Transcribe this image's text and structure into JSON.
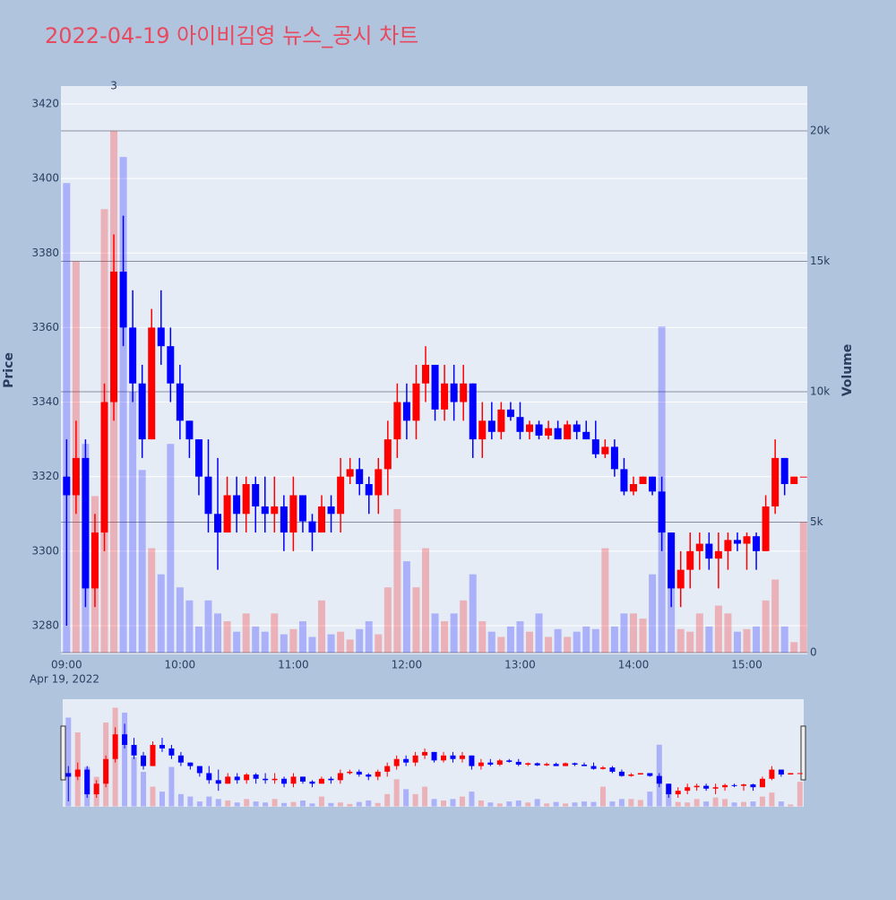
{
  "chart_data": {
    "type": "candlestick",
    "title": "2022-04-19 아이비김영 뉴스_공시 차트",
    "y_label": "Price",
    "y2_label": "Volume",
    "x_date_label": "Apr 19, 2022",
    "increasing_color": "red",
    "decreasing_color": "blue",
    "x": [
      "09:00",
      "09:05",
      "09:10",
      "09:15",
      "09:20",
      "09:25",
      "09:30",
      "09:35",
      "09:40",
      "09:45",
      "09:50",
      "09:55",
      "10:00",
      "10:05",
      "10:10",
      "10:15",
      "10:20",
      "10:25",
      "10:30",
      "10:35",
      "10:40",
      "10:45",
      "10:50",
      "10:55",
      "11:00",
      "11:05",
      "11:10",
      "11:15",
      "11:20",
      "11:25",
      "11:30",
      "11:35",
      "11:40",
      "11:45",
      "11:50",
      "11:55",
      "12:00",
      "12:05",
      "12:10",
      "12:15",
      "12:20",
      "12:25",
      "12:30",
      "12:35",
      "12:40",
      "12:45",
      "12:50",
      "12:55",
      "13:00",
      "13:05",
      "13:10",
      "13:15",
      "13:20",
      "13:25",
      "13:30",
      "13:35",
      "13:40",
      "13:45",
      "13:50",
      "13:55",
      "14:00",
      "14:05",
      "14:10",
      "14:15",
      "14:20",
      "14:25",
      "14:30",
      "14:35",
      "14:40",
      "14:45",
      "14:50",
      "14:55",
      "15:00",
      "15:05",
      "15:10",
      "15:15",
      "15:20",
      "15:25",
      "15:30"
    ],
    "open": [
      3320,
      3315,
      3325,
      3290,
      3305,
      3340,
      3375,
      3360,
      3345,
      3330,
      3360,
      3355,
      3345,
      3335,
      3330,
      3320,
      3310,
      3305,
      3315,
      3310,
      3318,
      3312,
      3310,
      3312,
      3305,
      3315,
      3308,
      3305,
      3312,
      3310,
      3320,
      3322,
      3318,
      3315,
      3322,
      3330,
      3340,
      3335,
      3345,
      3350,
      3338,
      3345,
      3340,
      3345,
      3330,
      3335,
      3332,
      3338,
      3336,
      3332,
      3334,
      3331,
      3333,
      3330,
      3334,
      3332,
      3330,
      3326,
      3328,
      3322,
      3316,
      3318,
      3320,
      3316,
      3305,
      3290,
      3295,
      3300,
      3302,
      3298,
      3300,
      3303,
      3302,
      3304,
      3300,
      3312,
      3325,
      3318,
      3320
    ],
    "high": [
      3330,
      3335,
      3330,
      3310,
      3345,
      3385,
      3390,
      3370,
      3350,
      3365,
      3370,
      3360,
      3350,
      3335,
      3330,
      3330,
      3325,
      3320,
      3320,
      3320,
      3320,
      3320,
      3320,
      3315,
      3320,
      3315,
      3310,
      3315,
      3315,
      3325,
      3325,
      3325,
      3320,
      3325,
      3335,
      3345,
      3345,
      3350,
      3355,
      3350,
      3350,
      3350,
      3350,
      3345,
      3340,
      3340,
      3340,
      3340,
      3340,
      3335,
      3335,
      3335,
      3335,
      3335,
      3335,
      3335,
      3335,
      3330,
      3330,
      3325,
      3320,
      3320,
      3320,
      3320,
      3305,
      3300,
      3305,
      3305,
      3305,
      3305,
      3305,
      3305,
      3305,
      3305,
      3315,
      3330,
      3325,
      3320,
      3320
    ],
    "low": [
      3280,
      3310,
      3285,
      3285,
      3300,
      3335,
      3355,
      3340,
      3325,
      3330,
      3350,
      3340,
      3330,
      3325,
      3315,
      3305,
      3295,
      3305,
      3305,
      3305,
      3305,
      3305,
      3305,
      3300,
      3300,
      3305,
      3300,
      3305,
      3305,
      3305,
      3318,
      3315,
      3310,
      3310,
      3315,
      3325,
      3330,
      3330,
      3340,
      3335,
      3335,
      3335,
      3335,
      3325,
      3325,
      3330,
      3330,
      3335,
      3330,
      3330,
      3330,
      3330,
      3330,
      3330,
      3330,
      3330,
      3325,
      3325,
      3320,
      3315,
      3315,
      3318,
      3315,
      3300,
      3285,
      3285,
      3290,
      3295,
      3295,
      3290,
      3295,
      3300,
      3295,
      3295,
      3300,
      3310,
      3315,
      3318,
      3320
    ],
    "close": [
      3315,
      3325,
      3290,
      3305,
      3340,
      3375,
      3360,
      3345,
      3330,
      3360,
      3355,
      3345,
      3335,
      3330,
      3320,
      3310,
      3305,
      3315,
      3310,
      3318,
      3312,
      3310,
      3312,
      3305,
      3315,
      3308,
      3305,
      3312,
      3310,
      3320,
      3322,
      3318,
      3315,
      3322,
      3330,
      3340,
      3335,
      3345,
      3350,
      3338,
      3345,
      3340,
      3345,
      3330,
      3335,
      3332,
      3338,
      3336,
      3332,
      3334,
      3331,
      3333,
      3330,
      3334,
      3332,
      3330,
      3326,
      3328,
      3322,
      3316,
      3318,
      3320,
      3316,
      3305,
      3290,
      3295,
      3300,
      3302,
      3298,
      3300,
      3303,
      3302,
      3304,
      3300,
      3312,
      3325,
      3318,
      3320,
      3320
    ],
    "volume": [
      18000,
      15000,
      8000,
      6000,
      17000,
      20000,
      19000,
      10000,
      7000,
      4000,
      3000,
      8000,
      2500,
      2000,
      1000,
      2000,
      1500,
      1200,
      800,
      1500,
      1000,
      800,
      1500,
      700,
      900,
      1200,
      600,
      2000,
      700,
      800,
      500,
      900,
      1200,
      700,
      2500,
      5500,
      3500,
      2500,
      4000,
      1500,
      1200,
      1500,
      2000,
      3000,
      1200,
      800,
      600,
      1000,
      1200,
      800,
      1500,
      600,
      900,
      600,
      800,
      1000,
      900,
      4000,
      1000,
      1500,
      1500,
      1300,
      3000,
      12500,
      3000,
      900,
      800,
      1500,
      1000,
      1800,
      1500,
      800,
      900,
      1000,
      2000,
      2800,
      1000,
      400,
      5000
    ],
    "xlim": [
      "08:57",
      "15:32"
    ],
    "xticks": [
      "09:00",
      "10:00",
      "11:00",
      "12:00",
      "13:00",
      "14:00",
      "15:00"
    ],
    "ylim": [
      3272.3,
      3424.8
    ],
    "yticks": [
      3280,
      3300,
      3320,
      3340,
      3360,
      3380,
      3400,
      3420
    ],
    "y2lim": [
      -70,
      21720
    ],
    "y2ticks": [
      0,
      {
        "value": 5000,
        "label": "5k"
      },
      {
        "value": 10000,
        "label": "10k"
      },
      {
        "value": 15000,
        "label": "15k"
      },
      {
        "value": 20000,
        "label": "20k"
      }
    ],
    "annotations": [
      {
        "x": "09:25",
        "text": "3"
      }
    ]
  }
}
